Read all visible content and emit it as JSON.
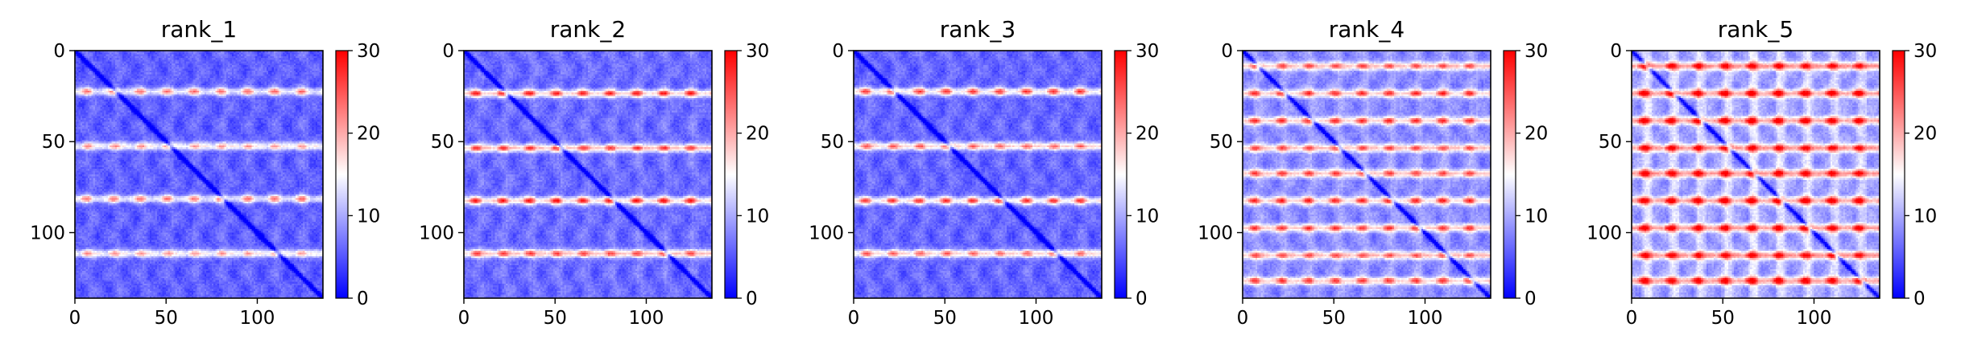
{
  "chart_data": {
    "type": "heatmap",
    "colormap": {
      "name": "bwr",
      "low": "#0000ff",
      "mid": "#ffffff",
      "high": "#ff0000",
      "vmin": 0,
      "vmax": 30
    },
    "n": 136,
    "xticks": [
      0,
      50,
      100
    ],
    "yticks": [
      0,
      50,
      100
    ],
    "colorbar_ticks": [
      0,
      10,
      20,
      30
    ],
    "panels": [
      {
        "title": "rank_1",
        "stripe_rows": [
          22,
          52,
          81,
          111
        ],
        "stripe_strength": 0.55,
        "background": 0.18,
        "vertical_bands": 0.05
      },
      {
        "title": "rank_2",
        "stripe_rows": [
          23,
          53,
          82,
          111
        ],
        "stripe_strength": 0.7,
        "background": 0.2,
        "vertical_bands": 0.06
      },
      {
        "title": "rank_3",
        "stripe_rows": [
          22,
          52,
          82,
          111
        ],
        "stripe_strength": 0.65,
        "background": 0.19,
        "vertical_bands": 0.05
      },
      {
        "title": "rank_4",
        "stripe_rows": [
          8,
          23,
          38,
          53,
          67,
          82,
          97,
          112,
          126
        ],
        "stripe_strength": 0.6,
        "background": 0.26,
        "vertical_bands": 0.08
      },
      {
        "title": "rank_5",
        "stripe_rows": [
          8,
          23,
          38,
          53,
          67,
          82,
          97,
          112,
          126
        ],
        "stripe_strength": 0.7,
        "background": 0.3,
        "vertical_bands": 0.18
      }
    ]
  }
}
